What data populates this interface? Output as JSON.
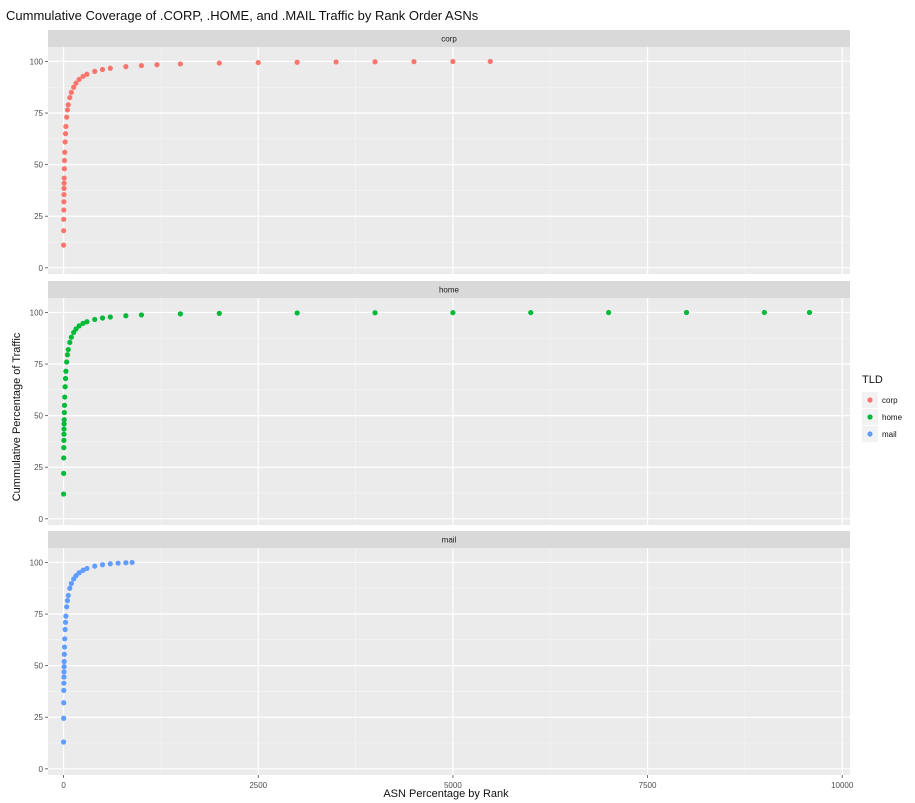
{
  "chart_data": {
    "type": "scatter",
    "title": "Cummulative Coverage of .CORP, .HOME, and .MAIL Traffic by Rank Order ASNs",
    "xlabel": "ASN Percentage by Rank",
    "ylabel": "Cummulative Percentage of Traffic",
    "xlim": [
      -200,
      10100
    ],
    "ylim": [
      -3,
      107
    ],
    "x_ticks": [
      0,
      2500,
      5000,
      7500,
      10000
    ],
    "y_ticks": [
      0,
      25,
      50,
      75,
      100
    ],
    "grid": true,
    "legend": {
      "title": "TLD",
      "position": "right"
    },
    "panels": [
      {
        "strip": "corp",
        "color": "#F8766D",
        "points": [
          [
            0,
            11
          ],
          [
            1,
            18
          ],
          [
            2,
            23.5
          ],
          [
            3,
            28
          ],
          [
            4,
            32
          ],
          [
            5,
            35.5
          ],
          [
            6,
            38.5
          ],
          [
            7,
            41
          ],
          [
            8,
            43.5
          ],
          [
            10,
            48
          ],
          [
            12,
            52
          ],
          [
            15,
            56
          ],
          [
            20,
            61
          ],
          [
            25,
            65
          ],
          [
            30,
            68.5
          ],
          [
            40,
            73
          ],
          [
            50,
            76.5
          ],
          [
            60,
            79
          ],
          [
            80,
            82.5
          ],
          [
            100,
            85
          ],
          [
            130,
            87.5
          ],
          [
            160,
            89.5
          ],
          [
            200,
            91.3
          ],
          [
            250,
            92.8
          ],
          [
            300,
            93.8
          ],
          [
            400,
            95.2
          ],
          [
            500,
            96.1
          ],
          [
            600,
            96.7
          ],
          [
            800,
            97.5
          ],
          [
            1000,
            98.0
          ],
          [
            1200,
            98.4
          ],
          [
            1500,
            98.8
          ],
          [
            2000,
            99.2
          ],
          [
            2500,
            99.45
          ],
          [
            3000,
            99.6
          ],
          [
            3500,
            99.75
          ],
          [
            4000,
            99.85
          ],
          [
            4500,
            99.92
          ],
          [
            5000,
            99.97
          ],
          [
            5480,
            100
          ]
        ]
      },
      {
        "strip": "home",
        "color": "#00BA38",
        "points": [
          [
            0,
            12
          ],
          [
            1,
            22
          ],
          [
            2,
            29.5
          ],
          [
            3,
            34.5
          ],
          [
            4,
            38
          ],
          [
            5,
            41
          ],
          [
            6,
            43.5
          ],
          [
            7,
            46
          ],
          [
            8,
            48
          ],
          [
            10,
            51.5
          ],
          [
            12,
            55
          ],
          [
            15,
            59
          ],
          [
            20,
            64
          ],
          [
            25,
            68
          ],
          [
            30,
            71.5
          ],
          [
            40,
            76
          ],
          [
            50,
            79.5
          ],
          [
            60,
            82
          ],
          [
            80,
            85.5
          ],
          [
            100,
            88
          ],
          [
            130,
            90.3
          ],
          [
            160,
            92
          ],
          [
            200,
            93.5
          ],
          [
            250,
            94.7
          ],
          [
            300,
            95.5
          ],
          [
            400,
            96.6
          ],
          [
            500,
            97.3
          ],
          [
            600,
            97.8
          ],
          [
            800,
            98.4
          ],
          [
            1000,
            98.8
          ],
          [
            1500,
            99.3
          ],
          [
            2000,
            99.55
          ],
          [
            3000,
            99.75
          ],
          [
            4000,
            99.85
          ],
          [
            5000,
            99.9
          ],
          [
            6000,
            99.94
          ],
          [
            7000,
            99.96
          ],
          [
            8000,
            99.98
          ],
          [
            9000,
            99.99
          ],
          [
            9580,
            100
          ]
        ]
      },
      {
        "strip": "mail",
        "color": "#619CFF",
        "points": [
          [
            0,
            13
          ],
          [
            1,
            24.5
          ],
          [
            2,
            32
          ],
          [
            3,
            38
          ],
          [
            4,
            41.5
          ],
          [
            5,
            44.5
          ],
          [
            6,
            47
          ],
          [
            7,
            49.5
          ],
          [
            8,
            52
          ],
          [
            10,
            55.5
          ],
          [
            12,
            59
          ],
          [
            15,
            63
          ],
          [
            20,
            67.5
          ],
          [
            25,
            71
          ],
          [
            30,
            74
          ],
          [
            40,
            78.5
          ],
          [
            50,
            81.5
          ],
          [
            60,
            84
          ],
          [
            80,
            87.5
          ],
          [
            100,
            89.8
          ],
          [
            130,
            92
          ],
          [
            160,
            93.6
          ],
          [
            200,
            95
          ],
          [
            250,
            96.2
          ],
          [
            300,
            97.1
          ],
          [
            400,
            98.2
          ],
          [
            500,
            98.9
          ],
          [
            600,
            99.35
          ],
          [
            700,
            99.65
          ],
          [
            800,
            99.85
          ],
          [
            880,
            100
          ]
        ]
      }
    ]
  }
}
